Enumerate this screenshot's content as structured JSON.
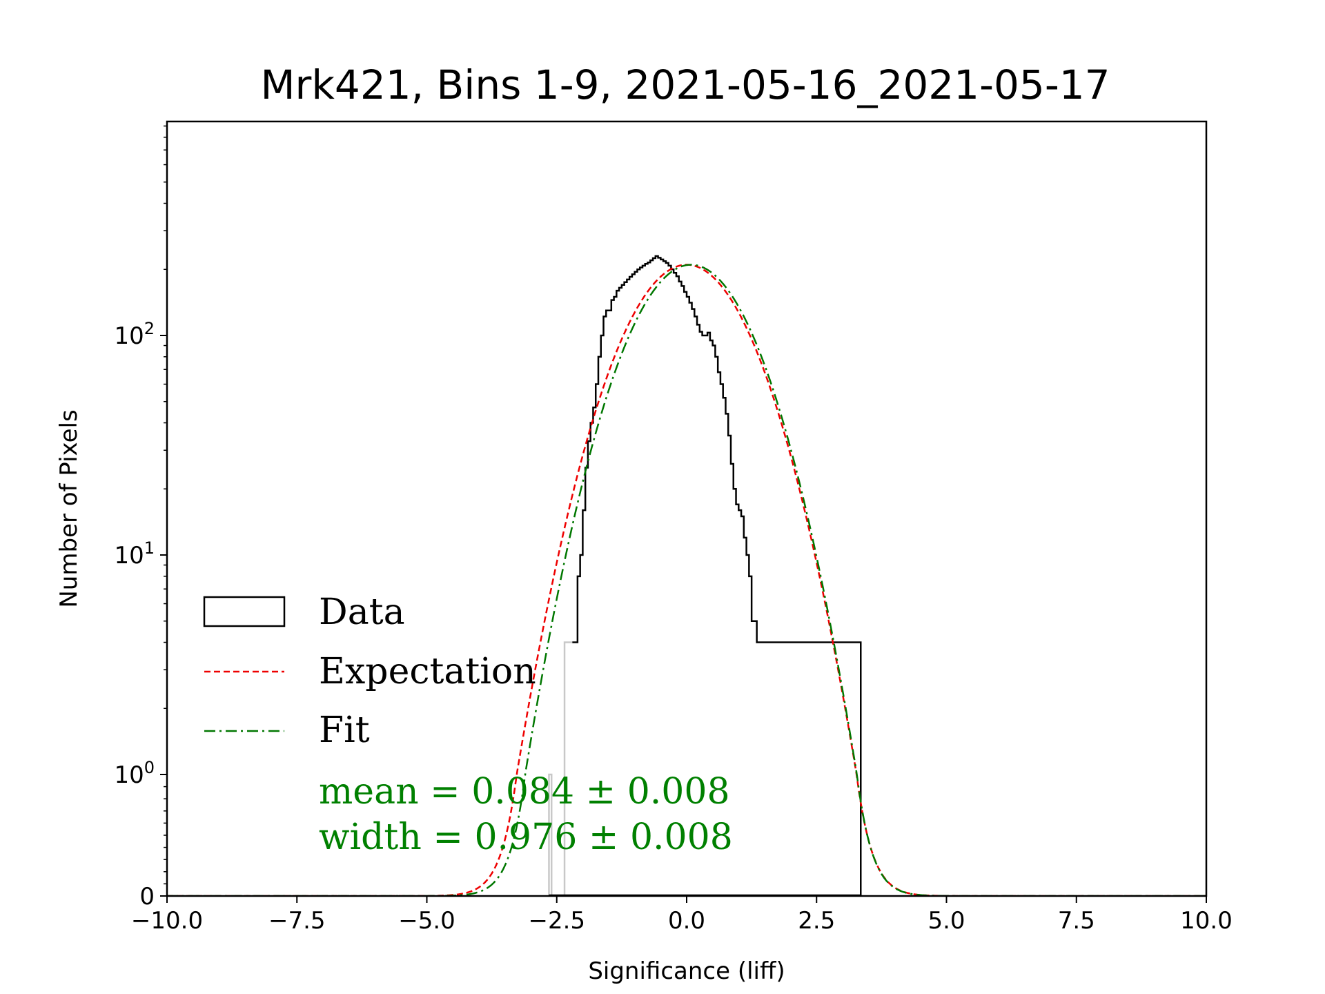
{
  "chart_data": {
    "type": "histogram",
    "title": "Mrk421, Bins 1-9, 2021-05-16_2021-05-17",
    "xlabel": "Significance (liff)",
    "ylabel": "Number of Pixels",
    "xlim": [
      -10.0,
      10.0
    ],
    "yscale": "symlog",
    "y_ticks": [
      0,
      1,
      10,
      100
    ],
    "x_ticks": [
      -10.0,
      -7.5,
      -5.0,
      -2.5,
      0.0,
      2.5,
      5.0,
      7.5,
      10.0
    ],
    "x_tick_labels": [
      "−10.0",
      "−7.5",
      "−5.0",
      "−2.5",
      "0.0",
      "2.5",
      "5.0",
      "7.5",
      "10.0"
    ],
    "y_tick_labels": {
      "zero": "0",
      "base": "10",
      "exps": [
        "0",
        "1",
        "2"
      ]
    },
    "legend": {
      "position": "lower-left",
      "entries": [
        {
          "label": "Data",
          "style": "histogram outline"
        },
        {
          "label": "Expectation",
          "style": "dashed"
        },
        {
          "label": "Fit",
          "style": "dash-dot"
        }
      ]
    },
    "annotations": {
      "mean_text": "mean = 0.084 ± 0.008",
      "width_text": "width = 0.976 ± 0.008"
    },
    "expectation": {
      "amplitude": 210,
      "mean": 0.0,
      "sigma": 1.0
    },
    "fit": {
      "amplitude": 210,
      "mean": 0.084,
      "sigma": 0.976
    },
    "faded_data_region": "x < -2.2 (left of threshold, drawn light gray)",
    "data": {
      "bin_edges_start": -2.65,
      "bin_edges_end": 3.35,
      "bin_width": 0.05,
      "counts": [
        1,
        0,
        0,
        0,
        0,
        0,
        4,
        4,
        4,
        4,
        4,
        8,
        10,
        16,
        25,
        33,
        40,
        47,
        60,
        80,
        100,
        122,
        130,
        130,
        145,
        150,
        160,
        165,
        170,
        175,
        180,
        185,
        190,
        195,
        200,
        204,
        208,
        212,
        215,
        220,
        225,
        230,
        226,
        222,
        218,
        214,
        208,
        200,
        193,
        186,
        176,
        168,
        158,
        150,
        141,
        132,
        122,
        112,
        104,
        100,
        100,
        103,
        95,
        90,
        80,
        68,
        60,
        52,
        44,
        35,
        26,
        20,
        17,
        16,
        15,
        12,
        10,
        8,
        5,
        5,
        4,
        4,
        4,
        4,
        4,
        4,
        4,
        4,
        4,
        4,
        4,
        4,
        4,
        4,
        4,
        4,
        4,
        4,
        4,
        4,
        4,
        4,
        4,
        4,
        4,
        4,
        4,
        4,
        4,
        4,
        4,
        4,
        4,
        4,
        4,
        4,
        4,
        4,
        4,
        4
      ]
    },
    "colors": {
      "data": "#000000",
      "faded_data": "#c8c8c8",
      "expectation": "#ee0000",
      "fit": "#007700",
      "annotation": "#008000"
    }
  }
}
